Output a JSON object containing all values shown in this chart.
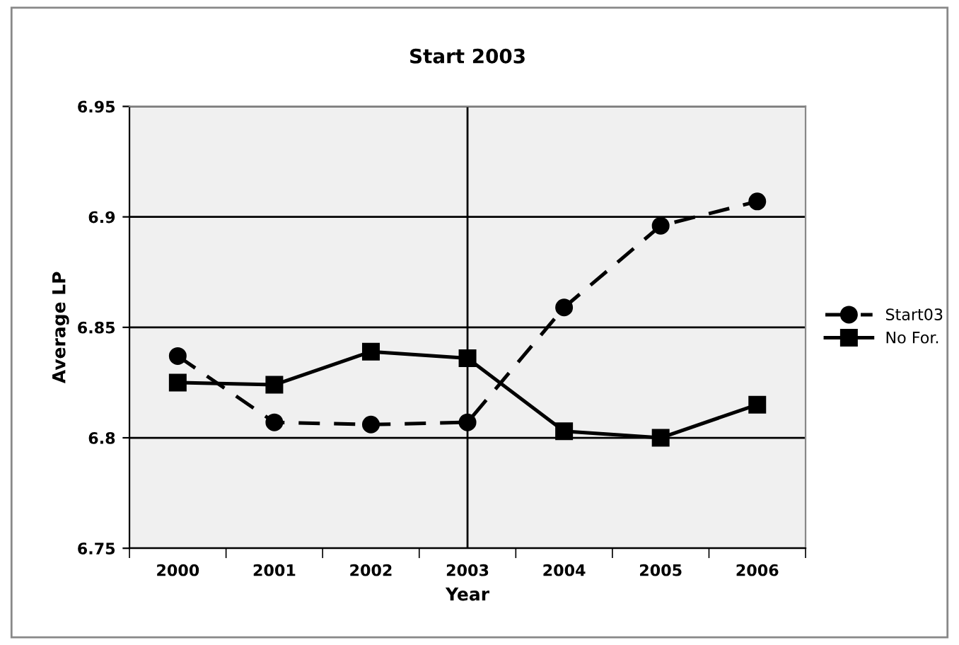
{
  "chart_data": {
    "type": "line",
    "title": "Start 2003",
    "xlabel": "Year",
    "ylabel": "Average LP",
    "categories": [
      "2000",
      "2001",
      "2002",
      "2003",
      "2004",
      "2005",
      "2006"
    ],
    "series": [
      {
        "name": "Start03",
        "color": "#000000",
        "marker": "circle",
        "line_style": "dashed",
        "values": [
          6.837,
          6.807,
          6.806,
          6.807,
          6.859,
          6.896,
          6.907
        ]
      },
      {
        "name": "No For.",
        "color": "#000000",
        "marker": "square",
        "line_style": "solid",
        "values": [
          6.825,
          6.824,
          6.839,
          6.836,
          6.803,
          6.8,
          6.815
        ]
      }
    ],
    "ylim": [
      6.75,
      6.95
    ],
    "yticks": [
      6.75,
      6.8,
      6.85,
      6.9,
      6.95
    ],
    "grid": "y",
    "legend": "right",
    "ref_lines": [
      {
        "axis": "x",
        "value": "2003",
        "color": "#000000"
      }
    ]
  }
}
